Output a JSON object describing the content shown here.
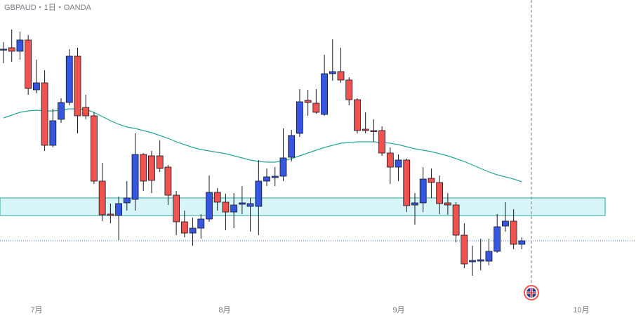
{
  "chart_data": {
    "type": "candlestick",
    "title": "GBPAUD・1日・OANDA",
    "ylim": [
      1.909,
      1.995
    ],
    "up_color": "#3656e0",
    "down_color": "#ef5350",
    "series": [
      {
        "open": [
          1.9808,
          1.9814,
          1.9804,
          1.9836,
          1.9694,
          1.9714,
          1.9536,
          1.961,
          1.9658,
          1.979,
          1.9644,
          1.962,
          1.9434,
          1.934,
          1.9336,
          1.9372,
          1.9382,
          1.951,
          1.9506,
          1.9506,
          1.9474,
          1.9394,
          1.9318,
          1.9286,
          1.93,
          1.9326,
          1.9402,
          1.9374,
          1.9346,
          1.9368,
          1.9362,
          1.9362,
          1.9434,
          1.9444,
          1.9448,
          1.9502,
          1.957,
          1.9664,
          1.9656,
          1.9624,
          1.974,
          1.9746,
          1.9722,
          1.9666,
          1.9582,
          1.9578,
          1.9578,
          1.9514,
          1.9474,
          1.9494,
          1.9366,
          1.9372,
          1.9442,
          1.943,
          1.9372,
          1.9366,
          1.928,
          1.9204,
          1.9206,
          1.9206,
          1.9234,
          1.9306,
          1.932,
          1.9254
        ],
        "high": [
          1.983,
          1.9866,
          1.986,
          1.985,
          1.978,
          1.975,
          1.964,
          1.967,
          1.981,
          1.9814,
          1.968,
          1.963,
          1.9486,
          1.937,
          1.939,
          1.9434,
          1.957,
          1.9514,
          1.952,
          1.955,
          1.948,
          1.9406,
          1.935,
          1.933,
          1.934,
          1.945,
          1.9414,
          1.9398,
          1.94,
          1.942,
          1.9386,
          1.9494,
          1.947,
          1.9474,
          1.9584,
          1.958,
          1.9696,
          1.9694,
          1.9696,
          1.9794,
          1.9838,
          1.9814,
          1.973,
          1.967,
          1.963,
          1.961,
          1.959,
          1.953,
          1.951,
          1.9498,
          1.94,
          1.9474,
          1.947,
          1.945,
          1.94,
          1.9374,
          1.9314,
          1.925,
          1.927,
          1.927,
          1.934,
          1.9374,
          1.9354,
          1.9274
        ],
        "low": [
          1.977,
          1.9774,
          1.978,
          1.968,
          1.9684,
          1.952,
          1.953,
          1.96,
          1.965,
          1.957,
          1.961,
          1.9426,
          1.932,
          1.9314,
          1.9266,
          1.935,
          1.935,
          1.9406,
          1.94,
          1.946,
          1.9366,
          1.928,
          1.9274,
          1.925,
          1.927,
          1.9318,
          1.935,
          1.9294,
          1.93,
          1.934,
          1.929,
          1.928,
          1.942,
          1.942,
          1.9434,
          1.949,
          1.956,
          1.962,
          1.9626,
          1.962,
          1.972,
          1.9714,
          1.965,
          1.957,
          1.957,
          1.9546,
          1.9506,
          1.9426,
          1.9434,
          1.9346,
          1.931,
          1.9346,
          1.9386,
          1.934,
          1.9338,
          1.926,
          1.9186,
          1.9164,
          1.918,
          1.9194,
          1.923,
          1.929,
          1.924,
          1.924
        ],
        "close": [
          1.981,
          1.9804,
          1.9836,
          1.9698,
          1.9714,
          1.9536,
          1.9606,
          1.9658,
          1.979,
          1.962,
          1.962,
          1.9434,
          1.9338,
          1.9336,
          1.937,
          1.9386,
          1.951,
          1.9434,
          1.9436,
          1.947,
          1.9394,
          1.9318,
          1.9286,
          1.93,
          1.9326,
          1.9402,
          1.9374,
          1.9346,
          1.9366,
          1.9372,
          1.937,
          1.9434,
          1.9446,
          1.9448,
          1.95,
          1.9564,
          1.966,
          1.9658,
          1.963,
          1.974,
          1.9746,
          1.9722,
          1.9666,
          1.9578,
          1.9578,
          1.9576,
          1.9514,
          1.9474,
          1.9494,
          1.9364,
          1.9372,
          1.944,
          1.943,
          1.937,
          1.9366,
          1.928,
          1.9198,
          1.9208,
          1.921,
          1.9234,
          1.9304,
          1.932,
          1.9254,
          1.9264
        ]
      }
    ],
    "moving_average": {
      "color": "#26a69a",
      "values": [
        1.9614,
        1.9622,
        1.963,
        1.9634,
        1.9636,
        1.9634,
        1.9634,
        1.9636,
        1.964,
        1.964,
        1.9638,
        1.963,
        1.9618,
        1.9606,
        1.9596,
        1.9588,
        1.9584,
        1.9578,
        1.9572,
        1.9564,
        1.9556,
        1.9546,
        1.9538,
        1.953,
        1.9524,
        1.952,
        1.9516,
        1.9512,
        1.9506,
        1.95,
        1.9494,
        1.949,
        1.9488,
        1.9488,
        1.9492,
        1.9498,
        1.9506,
        1.9514,
        1.9522,
        1.953,
        1.9536,
        1.9542,
        1.9544,
        1.9546,
        1.9546,
        1.9546,
        1.9544,
        1.9542,
        1.9538,
        1.9532,
        1.9526,
        1.9522,
        1.9518,
        1.9512,
        1.9506,
        1.9498,
        1.949,
        1.948,
        1.947,
        1.946,
        1.9452,
        1.9446,
        1.944,
        1.9432
      ]
    },
    "zone": [
      1.9386,
      1.9336
    ],
    "last_price": 1.9264,
    "x_labels": [
      "7月",
      "8月",
      "9月",
      "10月"
    ]
  }
}
